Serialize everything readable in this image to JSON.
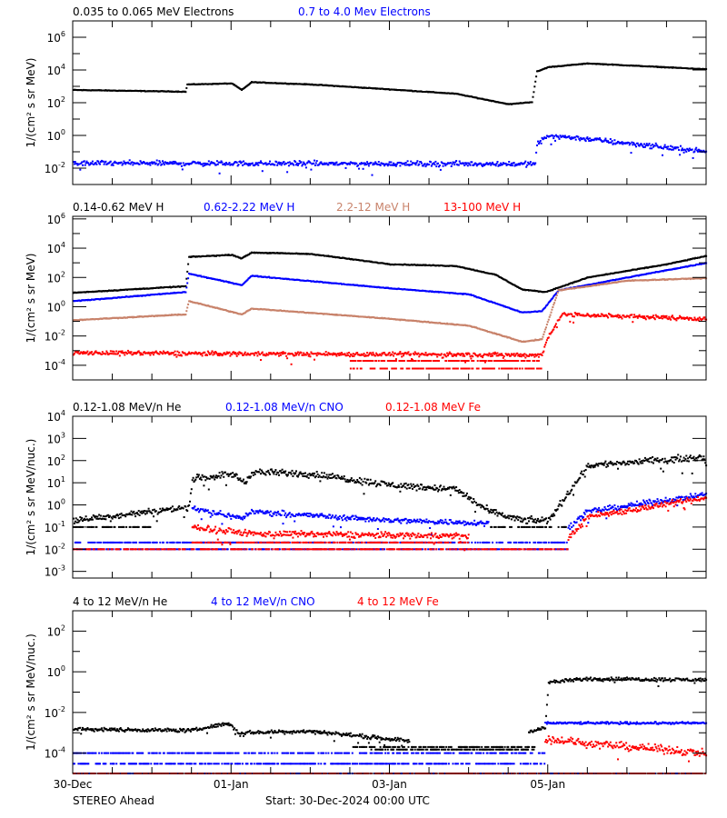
{
  "chart_data": [
    {
      "type": "scatter",
      "ylabel": "1/(cm² s sr MeV)",
      "yscale": "log",
      "ylim": [
        0.001,
        10000000
      ],
      "ytick_labels": [
        1000000,
        10000,
        100,
        1,
        0.01
      ],
      "series": [
        {
          "name": "0.035 to 0.065 MeV Electrons",
          "color": "#000000",
          "noise": 0.03,
          "profile": [
            [
              "2024-12-30T00:00",
              600
            ],
            [
              "2024-12-31T10:00",
              470
            ],
            [
              "2024-12-31T10:30",
              1300
            ],
            [
              "2025-01-01T00:00",
              1500
            ],
            [
              "2025-01-01T03:00",
              600
            ],
            [
              "2025-01-01T06:00",
              1800
            ],
            [
              "2025-01-02T00:00",
              1300
            ],
            [
              "2025-01-03T00:00",
              650
            ],
            [
              "2025-01-03T20:00",
              350
            ],
            [
              "2025-01-04T12:00",
              80
            ],
            [
              "2025-01-04T19:00",
              110
            ],
            [
              "2025-01-04T20:30",
              8000
            ],
            [
              "2025-01-05T00:00",
              15000
            ],
            [
              "2025-01-05T12:00",
              25000
            ],
            [
              "2025-01-07T00:00",
              11000
            ]
          ],
          "floors": []
        },
        {
          "name": "0.7 to 4.0 Mev Electrons",
          "color": "#0000ff",
          "noise": 0.22,
          "profile": [
            [
              "2024-12-30T00:00",
              0.02
            ],
            [
              "2025-01-04T20:00",
              0.018
            ],
            [
              "2025-01-04T20:30",
              0.3
            ],
            [
              "2025-01-05T00:00",
              1.0
            ],
            [
              "2025-01-05T12:00",
              0.6
            ],
            [
              "2025-01-07T00:00",
              0.1
            ]
          ],
          "floors": []
        }
      ]
    },
    {
      "type": "scatter",
      "ylabel": "1/(cm² s sr MeV)",
      "yscale": "log",
      "ylim": [
        1e-05,
        1500000
      ],
      "ytick_labels": [
        1000000,
        10000,
        100,
        1,
        0.01,
        0.0001
      ],
      "series": [
        {
          "name": "0.14-0.62 MeV H",
          "color": "#000000",
          "noise": 0.04,
          "profile": [
            [
              "2024-12-30T00:00",
              9
            ],
            [
              "2024-12-31T10:00",
              25
            ],
            [
              "2024-12-31T11:00",
              2500
            ],
            [
              "2025-01-01T00:00",
              3500
            ],
            [
              "2025-01-01T03:00",
              2000
            ],
            [
              "2025-01-01T06:00",
              5000
            ],
            [
              "2025-01-02T00:00",
              4000
            ],
            [
              "2025-01-03T00:00",
              800
            ],
            [
              "2025-01-03T20:00",
              600
            ],
            [
              "2025-01-04T08:00",
              150
            ],
            [
              "2025-01-04T16:00",
              15
            ],
            [
              "2025-01-04T23:00",
              10
            ],
            [
              "2025-01-05T12:00",
              100
            ],
            [
              "2025-01-06T12:00",
              800
            ],
            [
              "2025-01-07T00:00",
              3000
            ]
          ],
          "floors": []
        },
        {
          "name": "0.62-2.22 MeV H",
          "color": "#0000ff",
          "noise": 0.04,
          "profile": [
            [
              "2024-12-30T00:00",
              2.4
            ],
            [
              "2024-12-31T10:00",
              10
            ],
            [
              "2024-12-31T11:00",
              180
            ],
            [
              "2025-01-01T03:00",
              30
            ],
            [
              "2025-01-01T06:00",
              130
            ],
            [
              "2025-01-03T00:00",
              18
            ],
            [
              "2025-01-04T00:00",
              7
            ],
            [
              "2025-01-04T16:00",
              0.4
            ],
            [
              "2025-01-04T22:00",
              0.5
            ],
            [
              "2025-01-05T03:00",
              13
            ],
            [
              "2025-01-06T00:00",
              100
            ],
            [
              "2025-01-07T00:00",
              1000
            ]
          ],
          "floors": []
        },
        {
          "name": "2.2-12 MeV H",
          "color": "#c8826a",
          "noise": 0.04,
          "profile": [
            [
              "2024-12-30T00:00",
              0.12
            ],
            [
              "2024-12-31T10:00",
              0.3
            ],
            [
              "2024-12-31T11:00",
              2.4
            ],
            [
              "2025-01-01T03:00",
              0.3
            ],
            [
              "2025-01-01T06:00",
              0.75
            ],
            [
              "2025-01-03T00:00",
              0.15
            ],
            [
              "2025-01-04T00:00",
              0.05
            ],
            [
              "2025-01-04T16:00",
              0.004
            ],
            [
              "2025-01-04T22:00",
              0.006
            ],
            [
              "2025-01-05T03:00",
              13
            ],
            [
              "2025-01-06T00:00",
              60
            ],
            [
              "2025-01-07T00:00",
              90
            ]
          ],
          "floors": []
        },
        {
          "name": "13-100 MeV H",
          "color": "#ff0000",
          "noise": 0.22,
          "profile": [
            [
              "2024-12-30T00:00",
              0.0007
            ],
            [
              "2025-01-04T22:00",
              0.0005
            ],
            [
              "2025-01-05T00:00",
              0.01
            ],
            [
              "2025-01-05T04:00",
              0.3
            ],
            [
              "2025-01-07T00:00",
              0.15
            ]
          ],
          "floors": [
            {
              "value": 0.0002,
              "from": "2025-01-02T12:00",
              "to": "2025-01-04T22:00"
            },
            {
              "value": 6e-05,
              "from": "2025-01-02T12:00",
              "to": "2025-01-04T22:00"
            }
          ]
        }
      ]
    },
    {
      "type": "scatter",
      "ylabel": "1/(cm² s sr MeV/nuc.)",
      "yscale": "log",
      "ylim": [
        0.0005,
        10000
      ],
      "ytick_labels": [
        10000,
        1000,
        100,
        10,
        1,
        0.1,
        0.01,
        0.001
      ],
      "series": [
        {
          "name": "0.12-1.08 MeV/n He",
          "color": "#000000",
          "noise": 0.22,
          "profile": [
            [
              "2024-12-30T00:00",
              0.2
            ],
            [
              "2024-12-31T00:00",
              0.5
            ],
            [
              "2024-12-31T11:00",
              0.8
            ],
            [
              "2024-12-31T12:00",
              15
            ],
            [
              "2025-01-01T00:00",
              25
            ],
            [
              "2025-01-01T04:00",
              10
            ],
            [
              "2025-01-01T06:00",
              30
            ],
            [
              "2025-01-02T00:00",
              25
            ],
            [
              "2025-01-03T00:00",
              8
            ],
            [
              "2025-01-03T20:00",
              5
            ],
            [
              "2025-01-04T06:00",
              0.5
            ],
            [
              "2025-01-04T16:00",
              0.2
            ],
            [
              "2025-01-05T00:00",
              0.2
            ],
            [
              "2025-01-05T12:00",
              60
            ],
            [
              "2025-01-07T00:00",
              150
            ]
          ],
          "floors": [
            {
              "value": 0.1,
              "from": "2024-12-30T00:00",
              "to": "2024-12-31T00:00"
            },
            {
              "value": 0.1,
              "from": "2025-01-04T06:00",
              "to": "2025-01-05T06:00"
            }
          ]
        },
        {
          "name": "0.12-1.08 MeV/n CNO",
          "color": "#0000ff",
          "noise": 0.18,
          "profile": [
            [
              "2024-12-30T00:00",
              null
            ],
            [
              "2024-12-31T12:00",
              null
            ],
            [
              "2024-12-31T12:00",
              0.7
            ],
            [
              "2025-01-01T03:00",
              0.25
            ],
            [
              "2025-01-01T06:00",
              0.5
            ],
            [
              "2025-01-03T00:00",
              0.2
            ],
            [
              "2025-01-04T06:00",
              0.15
            ],
            [
              "2025-01-04T06:00",
              null
            ],
            [
              "2025-01-05T06:00",
              null
            ],
            [
              "2025-01-05T06:00",
              0.1
            ],
            [
              "2025-01-05T12:00",
              0.5
            ],
            [
              "2025-01-07T00:00",
              3
            ]
          ],
          "floors": [
            {
              "value": 0.02,
              "from": "2024-12-30T00:00",
              "to": "2025-01-05T06:00"
            },
            {
              "value": 0.01,
              "from": "2024-12-30T00:00",
              "to": "2025-01-05T06:00"
            }
          ]
        },
        {
          "name": "0.12-1.08 MeV Fe",
          "color": "#ff0000",
          "noise": 0.2,
          "profile": [
            [
              "2024-12-30T00:00",
              null
            ],
            [
              "2024-12-31T12:00",
              null
            ],
            [
              "2024-12-31T12:00",
              0.1
            ],
            [
              "2025-01-01T06:00",
              0.05
            ],
            [
              "2025-01-04T00:00",
              0.04
            ],
            [
              "2025-01-04T00:00",
              null
            ],
            [
              "2025-01-05T06:00",
              null
            ],
            [
              "2025-01-05T06:00",
              0.03
            ],
            [
              "2025-01-05T12:00",
              0.3
            ],
            [
              "2025-01-07T00:00",
              2
            ]
          ],
          "floors": [
            {
              "value": 0.01,
              "from": "2024-12-30T00:00",
              "to": "2025-01-05T06:00"
            },
            {
              "value": 0.02,
              "from": "2024-12-31T12:00",
              "to": "2025-01-04T00:00"
            }
          ]
        }
      ]
    },
    {
      "type": "scatter",
      "ylabel": "1/(cm² s sr MeV/nuc.)",
      "yscale": "log",
      "ylim": [
        1e-05,
        1000
      ],
      "ytick_labels": [
        100,
        1,
        0.01,
        0.0001
      ],
      "xlabels": [
        "30-Dec",
        "01-Jan",
        "03-Jan",
        "05-Jan"
      ],
      "xticks": [
        "2024-12-30T00:00",
        "2025-01-01T00:00",
        "2025-01-03T00:00",
        "2025-01-05T00:00"
      ],
      "series": [
        {
          "name": "4 to 12 MeV/n He",
          "color": "#000000",
          "noise": 0.13,
          "profile": [
            [
              "2024-12-30T00:00",
              0.0015
            ],
            [
              "2024-12-31T12:00",
              0.0013
            ],
            [
              "2024-12-31T23:00",
              0.003
            ],
            [
              "2025-01-01T02:00",
              0.001
            ],
            [
              "2025-01-02T00:00",
              0.0012
            ],
            [
              "2025-01-03T00:00",
              0.0005
            ],
            [
              "2025-01-03T06:00",
              0.0004
            ],
            [
              "2025-01-03T06:00",
              null
            ],
            [
              "2025-01-04T18:00",
              null
            ],
            [
              "2025-01-04T18:00",
              0.001
            ],
            [
              "2025-01-04T23:00",
              0.002
            ],
            [
              "2025-01-05T00:00",
              0.3
            ],
            [
              "2025-01-05T12:00",
              0.45
            ],
            [
              "2025-01-07T00:00",
              0.4
            ]
          ],
          "floors": [
            {
              "value": 0.0002,
              "from": "2025-01-02T12:00",
              "to": "2025-01-04T20:00"
            },
            {
              "value": 0.00015,
              "from": "2025-01-02T18:00",
              "to": "2025-01-04T20:00"
            }
          ]
        },
        {
          "name": "4 to 12 MeV/n CNO",
          "color": "#0000ff",
          "noise": 0.08,
          "profile": [
            [
              "2024-12-30T00:00",
              null
            ],
            [
              "2025-01-04T23:00",
              null
            ],
            [
              "2025-01-04T23:00",
              0.003
            ],
            [
              "2025-01-07T00:00",
              0.003
            ]
          ],
          "floors": [
            {
              "value": 0.0001,
              "from": "2024-12-30T00:00",
              "to": "2025-01-04T23:00"
            },
            {
              "value": 1e-05,
              "from": "2024-12-30T00:00",
              "to": "2025-01-07T00:00"
            },
            {
              "value": 3e-05,
              "from": "2024-12-30T00:00",
              "to": "2025-01-04T23:00"
            }
          ]
        },
        {
          "name": "4 to 12 MeV Fe",
          "color": "#ff0000",
          "noise": 0.28,
          "profile": [
            [
              "2024-12-30T00:00",
              null
            ],
            [
              "2025-01-04T23:00",
              null
            ],
            [
              "2025-01-04T23:00",
              0.0005
            ],
            [
              "2025-01-05T12:00",
              0.0003
            ],
            [
              "2025-01-07T00:00",
              0.0001
            ]
          ],
          "floors": [
            {
              "value": 1e-05,
              "from": "2024-12-30T00:00",
              "to": "2025-01-07T00:00"
            }
          ]
        }
      ]
    }
  ],
  "xlim": [
    "2024-12-30T00:00",
    "2025-01-07T00:00"
  ],
  "footer": {
    "spacecraft": "STEREO Ahead",
    "start": "Start: 30-Dec-2024 00:00 UTC"
  }
}
